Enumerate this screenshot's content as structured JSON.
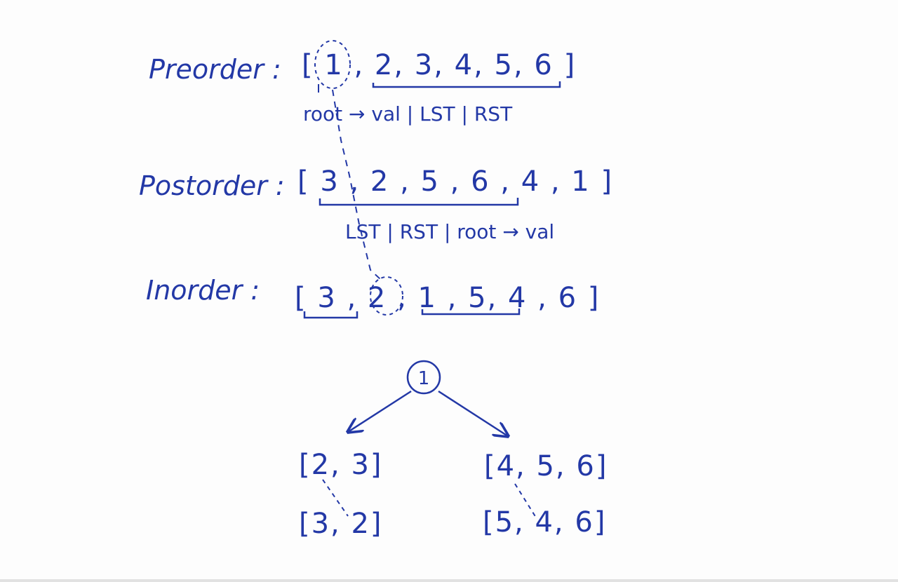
{
  "preorder": {
    "label": "Preorder :",
    "array": "[ 1 , 2, 3, 4, 5, 6 ]",
    "note": "root → val | LST | RST"
  },
  "postorder": {
    "label": "Postorder :",
    "array": "[ 3 , 2 , 5 , 6 , 4 , 1 ]",
    "note": "LST | RST | root → val"
  },
  "inorder": {
    "label": "Inorder :",
    "array": "[ 3 , 2 , 1 , 5, 4 , 6 ]"
  },
  "tree": {
    "root": "1",
    "left": "[2, 3]",
    "right": "[4, 5, 6]",
    "left_child": "[3, 2]",
    "right_child": "[5, 4, 6]"
  },
  "colors": {
    "ink": "#2338a6",
    "paper": "#fdfdfd"
  }
}
